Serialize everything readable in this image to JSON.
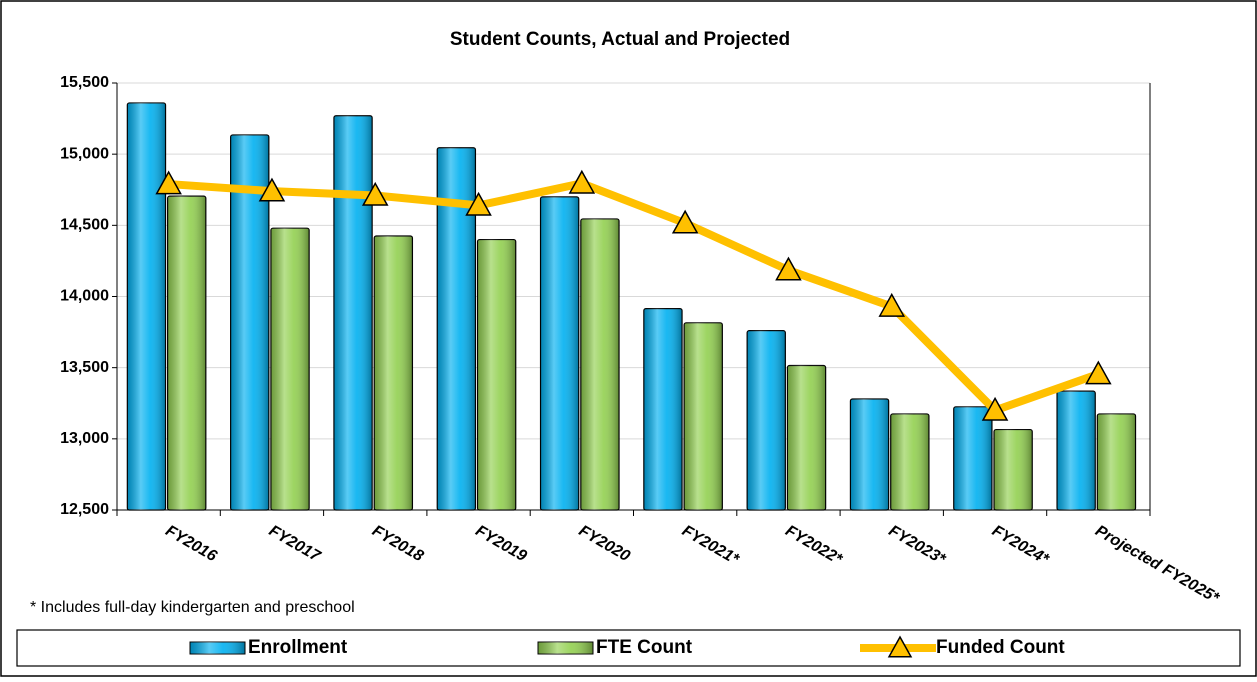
{
  "chart_data": {
    "type": "bar_line",
    "title": "Student Counts, Actual and Projected",
    "categories": [
      "FY2016",
      "FY2017",
      "FY2018",
      "FY2019",
      "FY2020",
      "FY2021*",
      "FY2022*",
      "FY2023*",
      "FY2024*",
      "Projected FY2025*"
    ],
    "series": [
      {
        "name": "Enrollment",
        "color": "#00b0f0",
        "kind": "bar",
        "values": [
          15360,
          15135,
          15270,
          15045,
          14700,
          13915,
          13760,
          13280,
          13225,
          13335
        ]
      },
      {
        "name": "FTE Count",
        "color": "#92d050",
        "kind": "bar",
        "values": [
          14705,
          14480,
          14425,
          14400,
          14545,
          13815,
          13515,
          13175,
          13065,
          13175
        ]
      },
      {
        "name": "Funded Count",
        "color": "#ffc000",
        "kind": "line",
        "values": [
          14790,
          14740,
          14710,
          14640,
          14795,
          14515,
          14185,
          13930,
          13200,
          13455
        ]
      }
    ],
    "ylim": [
      12500,
      15500
    ],
    "yticks": [
      {
        "value": 12500,
        "label": "12,500"
      },
      {
        "value": 13000,
        "label": "13,000"
      },
      {
        "value": 13500,
        "label": "13,500"
      },
      {
        "value": 14000,
        "label": "14,000"
      },
      {
        "value": 14500,
        "label": "14,500"
      },
      {
        "value": 15000,
        "label": "15,000"
      },
      {
        "value": 15500,
        "label": "15,500"
      }
    ],
    "grid": true,
    "legend": "bottom",
    "note": "* Includes full-day kindergarten and preschool"
  }
}
